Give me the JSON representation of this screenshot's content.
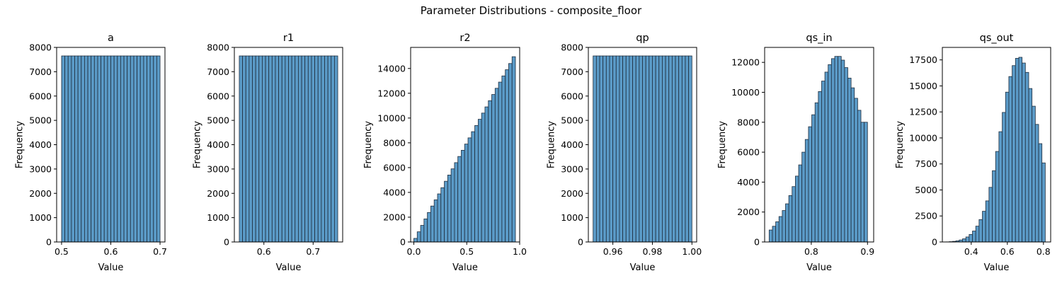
{
  "figure": {
    "suptitle": "Parameter Distributions - composite_floor"
  },
  "style": {
    "bar_fill": "#5b9bc8",
    "bar_edge": "#1f2d3d",
    "axis_color": "#000000"
  },
  "chart_data": [
    {
      "type": "bar",
      "title": "a",
      "xlabel": "Value",
      "ylabel": "Frequency",
      "xlim": [
        0.49,
        0.71
      ],
      "ylim": [
        0,
        8000
      ],
      "xticks": [
        0.5,
        0.6,
        0.7
      ],
      "xtick_labels": [
        "0.5",
        "0.6",
        "0.7"
      ],
      "yticks": [
        0,
        1000,
        2000,
        3000,
        4000,
        5000,
        6000,
        7000,
        8000
      ],
      "ytick_labels": [
        "0",
        "1000",
        "2000",
        "3000",
        "4000",
        "5000",
        "6000",
        "7000",
        "8000"
      ],
      "bin_start": 0.5,
      "bin_end": 0.7,
      "values": [
        7650,
        7650,
        7650,
        7650,
        7650,
        7650,
        7650,
        7650,
        7650,
        7650,
        7650,
        7650,
        7650,
        7650,
        7650,
        7650,
        7650,
        7650,
        7650,
        7650,
        7650,
        7650,
        7650,
        7650,
        7650,
        7650,
        7650,
        7650,
        7650,
        7650
      ]
    },
    {
      "type": "bar",
      "title": "r1",
      "xlabel": "Value",
      "ylabel": "Frequency",
      "xlim": [
        0.54,
        0.76
      ],
      "ylim": [
        0,
        8000
      ],
      "xticks": [
        0.6,
        0.7
      ],
      "xtick_labels": [
        "0.6",
        "0.7"
      ],
      "yticks": [
        0,
        1000,
        2000,
        3000,
        4000,
        5000,
        6000,
        7000,
        8000
      ],
      "ytick_labels": [
        "0",
        "1000",
        "2000",
        "3000",
        "4000",
        "5000",
        "6000",
        "7000",
        "8000"
      ],
      "bin_start": 0.55,
      "bin_end": 0.75,
      "values": [
        7650,
        7650,
        7650,
        7650,
        7650,
        7650,
        7650,
        7650,
        7650,
        7650,
        7650,
        7650,
        7650,
        7650,
        7650,
        7650,
        7650,
        7650,
        7650,
        7650,
        7650,
        7650,
        7650,
        7650,
        7650,
        7650,
        7650,
        7650,
        7650,
        7650
      ]
    },
    {
      "type": "bar",
      "title": "r2",
      "xlabel": "Value",
      "ylabel": "Frequency",
      "xlim": [
        -0.03,
        1.0
      ],
      "ylim": [
        0,
        15700
      ],
      "xticks": [
        0.0,
        0.5,
        1.0
      ],
      "xtick_labels": [
        "0.0",
        "0.5",
        "1.0"
      ],
      "yticks": [
        0,
        2000,
        4000,
        6000,
        8000,
        10000,
        12000,
        14000
      ],
      "ytick_labels": [
        "0",
        "2000",
        "4000",
        "6000",
        "8000",
        "10000",
        "12000",
        "14000"
      ],
      "bin_start": 0.0,
      "bin_end": 0.96,
      "values": [
        290,
        820,
        1340,
        1860,
        2380,
        2900,
        3400,
        3880,
        4380,
        4900,
        5400,
        5900,
        6400,
        6900,
        7400,
        7900,
        8400,
        8900,
        9400,
        9900,
        10400,
        10900,
        11400,
        11900,
        12400,
        12900,
        13400,
        13900,
        14400,
        14950
      ]
    },
    {
      "type": "bar",
      "title": "qp",
      "xlabel": "Value",
      "ylabel": "Frequency",
      "xlim": [
        0.9476,
        1.0024
      ],
      "ylim": [
        0,
        8000
      ],
      "xticks": [
        0.96,
        0.98,
        1.0
      ],
      "xtick_labels": [
        "0.96",
        "0.98",
        "1.00"
      ],
      "yticks": [
        0,
        1000,
        2000,
        3000,
        4000,
        5000,
        6000,
        7000,
        8000
      ],
      "ytick_labels": [
        "0",
        "1000",
        "2000",
        "3000",
        "4000",
        "5000",
        "6000",
        "7000",
        "8000"
      ],
      "bin_start": 0.95,
      "bin_end": 1.0,
      "values": [
        7650,
        7650,
        7650,
        7650,
        7650,
        7650,
        7650,
        7650,
        7650,
        7650,
        7650,
        7650,
        7650,
        7650,
        7650,
        7650,
        7650,
        7650,
        7650,
        7650,
        7650,
        7650,
        7650,
        7650,
        7650,
        7650,
        7650,
        7650,
        7650,
        7650
      ]
    },
    {
      "type": "bar",
      "title": "qs_in",
      "xlabel": "Value",
      "ylabel": "Frequency",
      "xlim": [
        0.717,
        0.911
      ],
      "ylim": [
        0,
        13000
      ],
      "xticks": [
        0.8,
        0.9
      ],
      "xtick_labels": [
        "0.8",
        "0.9"
      ],
      "yticks": [
        0,
        2000,
        4000,
        6000,
        8000,
        10000,
        12000
      ],
      "ytick_labels": [
        "0",
        "2000",
        "4000",
        "6000",
        "8000",
        "10000",
        "12000"
      ],
      "bin_start": 0.725,
      "bin_end": 0.9,
      "values": [
        800,
        1050,
        1350,
        1700,
        2100,
        2550,
        3100,
        3700,
        4400,
        5150,
        6000,
        6850,
        7700,
        8500,
        9300,
        10050,
        10750,
        11350,
        11850,
        12250,
        12400,
        12400,
        12150,
        11650,
        10950,
        10300,
        9600,
        8800,
        8000,
        8000
      ]
    },
    {
      "type": "bar",
      "title": "qs_out",
      "xlabel": "Value",
      "ylabel": "Frequency",
      "xlim": [
        0.24,
        0.84
      ],
      "ylim": [
        0,
        18700
      ],
      "xticks": [
        0.4,
        0.6,
        0.8
      ],
      "xtick_labels": [
        "0.4",
        "0.6",
        "0.8"
      ],
      "yticks": [
        0,
        2500,
        5000,
        7500,
        10000,
        12500,
        15000,
        17500
      ],
      "ytick_labels": [
        "0",
        "2500",
        "5000",
        "7500",
        "10000",
        "12500",
        "15000",
        "17500"
      ],
      "bin_start": 0.26,
      "bin_end": 0.81,
      "values": [
        10,
        30,
        60,
        110,
        190,
        300,
        480,
        720,
        1050,
        1520,
        2150,
        2950,
        3950,
        5250,
        6850,
        8700,
        10600,
        12450,
        14400,
        15900,
        16950,
        17650,
        17750,
        17200,
        16300,
        14750,
        13050,
        11300,
        9450,
        7600
      ]
    }
  ]
}
